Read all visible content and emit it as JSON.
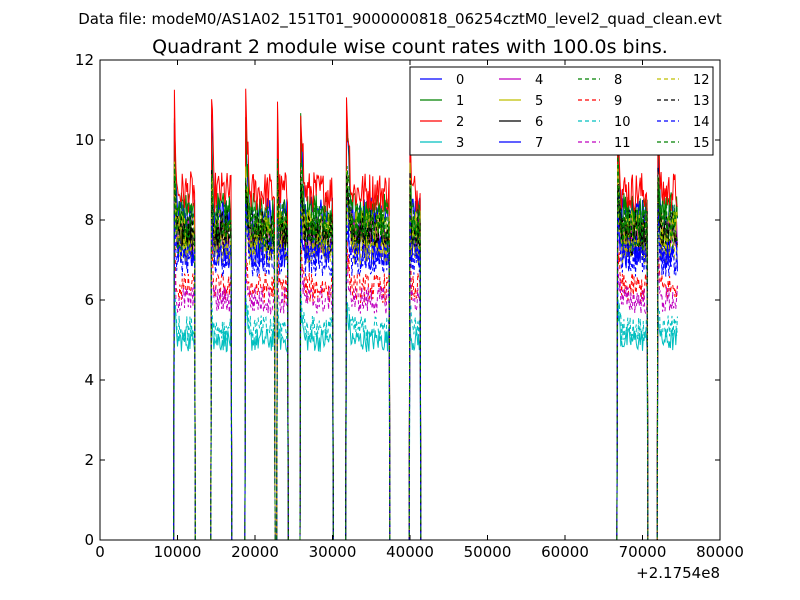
{
  "header": {
    "suptitle": "Data file: modeM0/AS1A02_151T01_9000000818_06254cztM0_level2_quad_clean.evt"
  },
  "chart_data": {
    "type": "line",
    "title": "Quadrant 2 module wise count rates with 100.0s bins.",
    "xlabel": "",
    "ylabel": "",
    "x_offset_label": "+2.1754e8",
    "xlim": [
      0,
      80000
    ],
    "ylim": [
      0,
      12
    ],
    "xticks": [
      "0",
      "10000",
      "20000",
      "30000",
      "40000",
      "50000",
      "60000",
      "70000",
      "80000"
    ],
    "yticks": [
      "0",
      "2",
      "4",
      "6",
      "8",
      "10",
      "12"
    ],
    "grid": false,
    "legend": {
      "placement": "top-right",
      "columns": 4
    },
    "segments": [
      [
        9600,
        12200
      ],
      [
        14400,
        16900
      ],
      [
        18800,
        22500
      ],
      [
        22900,
        24200
      ],
      [
        25900,
        30000
      ],
      [
        31800,
        37300
      ],
      [
        40000,
        41300
      ],
      [
        66800,
        70600
      ],
      [
        72000,
        74500
      ]
    ],
    "x_end": 74500,
    "series": [
      {
        "name": "0",
        "color": "#0000ff",
        "dash": "solid",
        "level": 8.1
      },
      {
        "name": "1",
        "color": "#008000",
        "dash": "solid",
        "level": 8.2
      },
      {
        "name": "2",
        "color": "#ff0000",
        "dash": "solid",
        "level": 8.7
      },
      {
        "name": "3",
        "color": "#00bfbf",
        "dash": "solid",
        "level": 5.0
      },
      {
        "name": "4",
        "color": "#bf00bf",
        "dash": "solid",
        "level": 7.6
      },
      {
        "name": "5",
        "color": "#bfbf00",
        "dash": "solid",
        "level": 7.8
      },
      {
        "name": "6",
        "color": "#000000",
        "dash": "solid",
        "level": 7.5
      },
      {
        "name": "7",
        "color": "#0000ff",
        "dash": "solid",
        "level": 7.2
      },
      {
        "name": "8",
        "color": "#008000",
        "dash": "dashed",
        "level": 7.6
      },
      {
        "name": "9",
        "color": "#ff0000",
        "dash": "dashed",
        "level": 6.3
      },
      {
        "name": "10",
        "color": "#00bfbf",
        "dash": "dashed",
        "level": 5.3
      },
      {
        "name": "11",
        "color": "#bf00bf",
        "dash": "dashed",
        "level": 6.0
      },
      {
        "name": "12",
        "color": "#bfbf00",
        "dash": "dashed",
        "level": 7.3
      },
      {
        "name": "13",
        "color": "#000000",
        "dash": "dashed",
        "level": 7.8
      },
      {
        "name": "14",
        "color": "#0000ff",
        "dash": "dashed",
        "level": 7.0
      },
      {
        "name": "15",
        "color": "#008000",
        "dash": "dashed",
        "level": 8.0
      }
    ]
  }
}
